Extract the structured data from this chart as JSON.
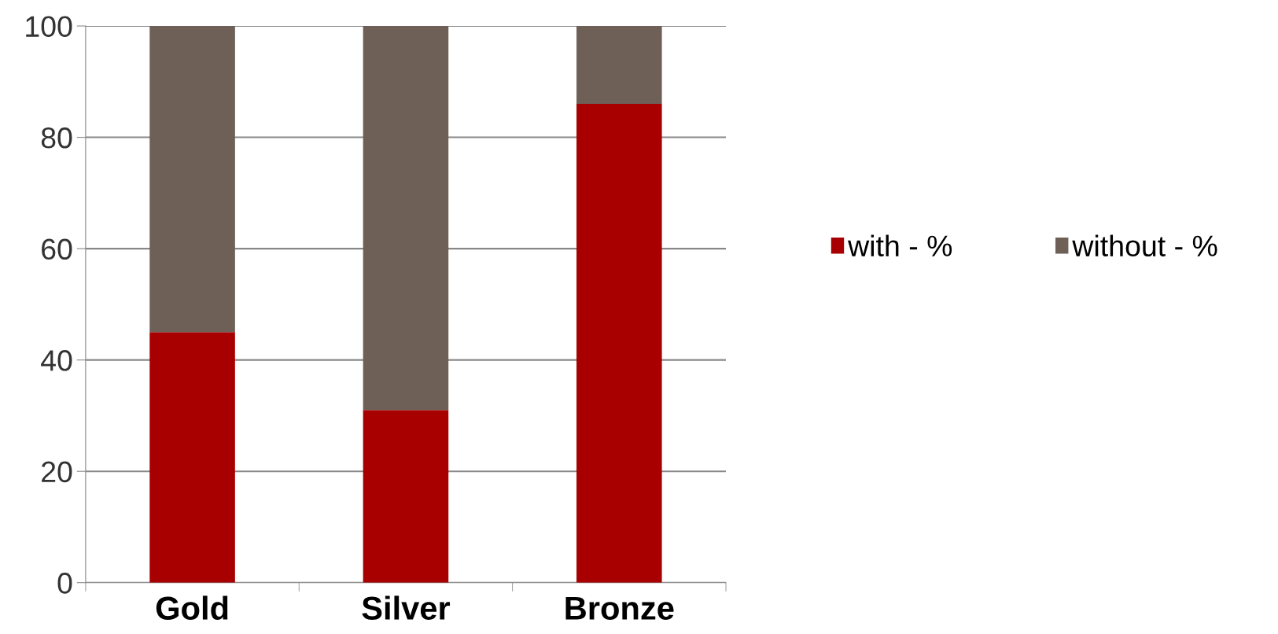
{
  "chart_data": {
    "type": "bar",
    "stacked": true,
    "categories": [
      "Gold",
      "Silver",
      "Bronze"
    ],
    "series": [
      {
        "name": "with - %",
        "color": "#a80000",
        "values": [
          45,
          31,
          86
        ]
      },
      {
        "name": "without - %",
        "color": "#6e5f57",
        "values": [
          55,
          69,
          14
        ]
      }
    ],
    "ylim": [
      0,
      100
    ],
    "yticks": [
      0,
      20,
      40,
      60,
      80,
      100
    ],
    "grid": "y",
    "legend": "right"
  }
}
